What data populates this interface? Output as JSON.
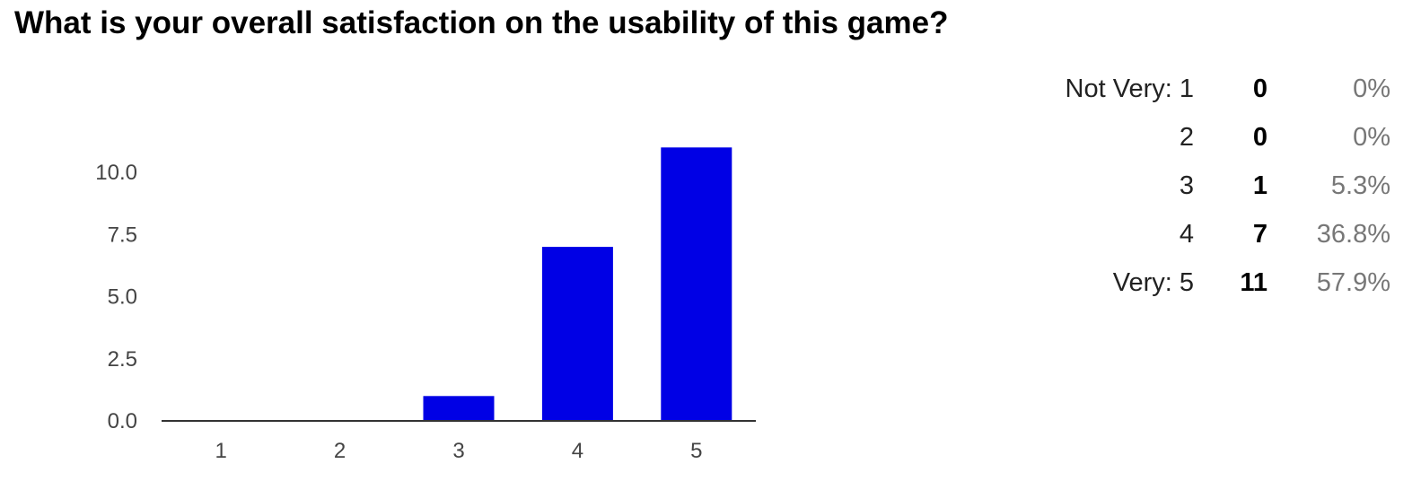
{
  "question": {
    "title": "What is your overall satisfaction on the usability of this game?"
  },
  "summary_rows": [
    {
      "label": "Not Very: 1",
      "count": "0",
      "percent": "0%"
    },
    {
      "label": "2",
      "count": "0",
      "percent": "0%"
    },
    {
      "label": "3",
      "count": "1",
      "percent": "5.3%"
    },
    {
      "label": "4",
      "count": "7",
      "percent": "36.8%"
    },
    {
      "label": "Very: 5",
      "count": "11",
      "percent": "57.9%"
    }
  ],
  "chart_data": {
    "type": "bar",
    "categories": [
      "1",
      "2",
      "3",
      "4",
      "5"
    ],
    "values": [
      0,
      0,
      1,
      7,
      11
    ],
    "yticks": [
      "0.0",
      "2.5",
      "5.0",
      "7.5",
      "10.0"
    ],
    "ylim": [
      0,
      11
    ],
    "bar_color": "#0000e5",
    "grid": false
  }
}
